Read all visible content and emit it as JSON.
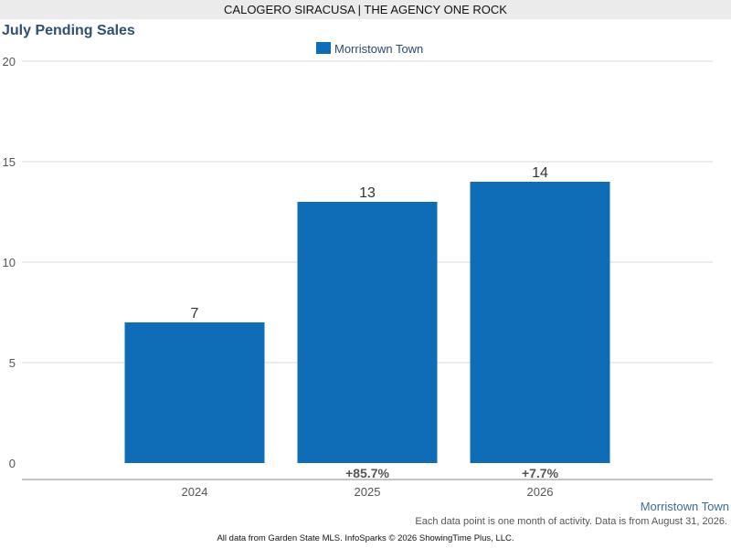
{
  "header": {
    "banner": "CALOGERO SIRACUSA | THE AGENCY ONE ROCK"
  },
  "colors": {
    "bar": "#0f6cb6",
    "grid": "#d9d9d9",
    "axis": "#888888"
  },
  "chart_data": {
    "type": "bar",
    "title": "July Pending Sales",
    "categories": [
      "2024",
      "2025",
      "2026"
    ],
    "series": [
      {
        "name": "Morristown Town",
        "values": [
          7,
          13,
          14
        ]
      }
    ],
    "changes": [
      "",
      "+85.7%",
      "+7.7%"
    ],
    "yticks": [
      0,
      5,
      10,
      15,
      20
    ],
    "ylim": [
      0,
      20
    ],
    "grid": true,
    "legend": "top-center"
  },
  "footer": {
    "area_label": "Morristown Town",
    "note": "Each data point is one month of activity. Data is from August 31, 2026.",
    "source": "All data from Garden State MLS. InfoSparks © 2026 ShowingTime Plus, LLC."
  }
}
